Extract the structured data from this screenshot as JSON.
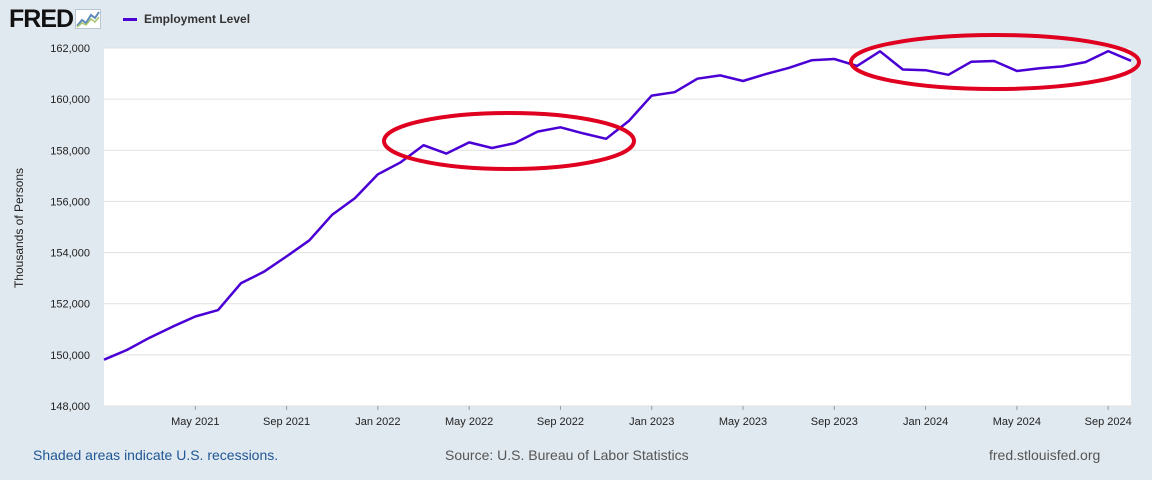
{
  "header": {
    "logo_text": "FRED",
    "logo_icon": "line-graph-icon",
    "legend_label": "Employment Level"
  },
  "footer": {
    "recession_note": "Shaded areas indicate U.S. recessions.",
    "source": "Source: U.S. Bureau of Labor Statistics",
    "site": "fred.stlouisfed.org"
  },
  "colors": {
    "series": "#4a00d4",
    "annotation": "#e00020",
    "background": "#e1e9f0",
    "plot_background": "#ffffff",
    "grid": "#e1e1e1",
    "footer_link": "#1f5694"
  },
  "chart_data": {
    "type": "line",
    "title": "",
    "xlabel": "",
    "ylabel": "Thousands of Persons",
    "x_ticks": [
      "May 2021",
      "Sep 2021",
      "Jan 2022",
      "May 2022",
      "Sep 2022",
      "Jan 2023",
      "May 2023",
      "Sep 2023",
      "Jan 2024",
      "May 2024",
      "Sep 2024"
    ],
    "y_ticks": [
      148000,
      150000,
      152000,
      154000,
      156000,
      158000,
      160000,
      162000
    ],
    "ylim": [
      148000,
      162000
    ],
    "xlim": [
      "2021-01",
      "2024-10"
    ],
    "grid": true,
    "legend_position": "top-left",
    "series": [
      {
        "name": "Employment Level",
        "x": [
          "2021-01",
          "2021-02",
          "2021-03",
          "2021-04",
          "2021-05",
          "2021-06",
          "2021-07",
          "2021-08",
          "2021-09",
          "2021-10",
          "2021-11",
          "2021-12",
          "2022-01",
          "2022-02",
          "2022-03",
          "2022-04",
          "2022-05",
          "2022-06",
          "2022-07",
          "2022-08",
          "2022-09",
          "2022-10",
          "2022-11",
          "2022-12",
          "2023-01",
          "2023-02",
          "2023-03",
          "2023-04",
          "2023-05",
          "2023-06",
          "2023-07",
          "2023-08",
          "2023-09",
          "2023-10",
          "2023-11",
          "2023-12",
          "2024-01",
          "2024-02",
          "2024-03",
          "2024-04",
          "2024-05",
          "2024-06",
          "2024-07",
          "2024-08",
          "2024-09",
          "2024-10"
        ],
        "values": [
          149810,
          150190,
          150670,
          151100,
          151500,
          151750,
          152800,
          153250,
          153850,
          154480,
          155480,
          156130,
          157060,
          157530,
          158200,
          157870,
          158310,
          158090,
          158280,
          158730,
          158900,
          158660,
          158450,
          159150,
          160140,
          160270,
          160800,
          160930,
          160710,
          160980,
          161220,
          161520,
          161570,
          161300,
          161870,
          161160,
          161130,
          160950,
          161460,
          161490,
          161100,
          161210,
          161280,
          161450,
          161880,
          161500
        ]
      }
    ],
    "annotations": [
      {
        "shape": "ellipse",
        "x_center": "2022-07",
        "y_center": 158300
      },
      {
        "shape": "ellipse",
        "x_center": "2024-02",
        "y_center": 161750
      }
    ]
  }
}
